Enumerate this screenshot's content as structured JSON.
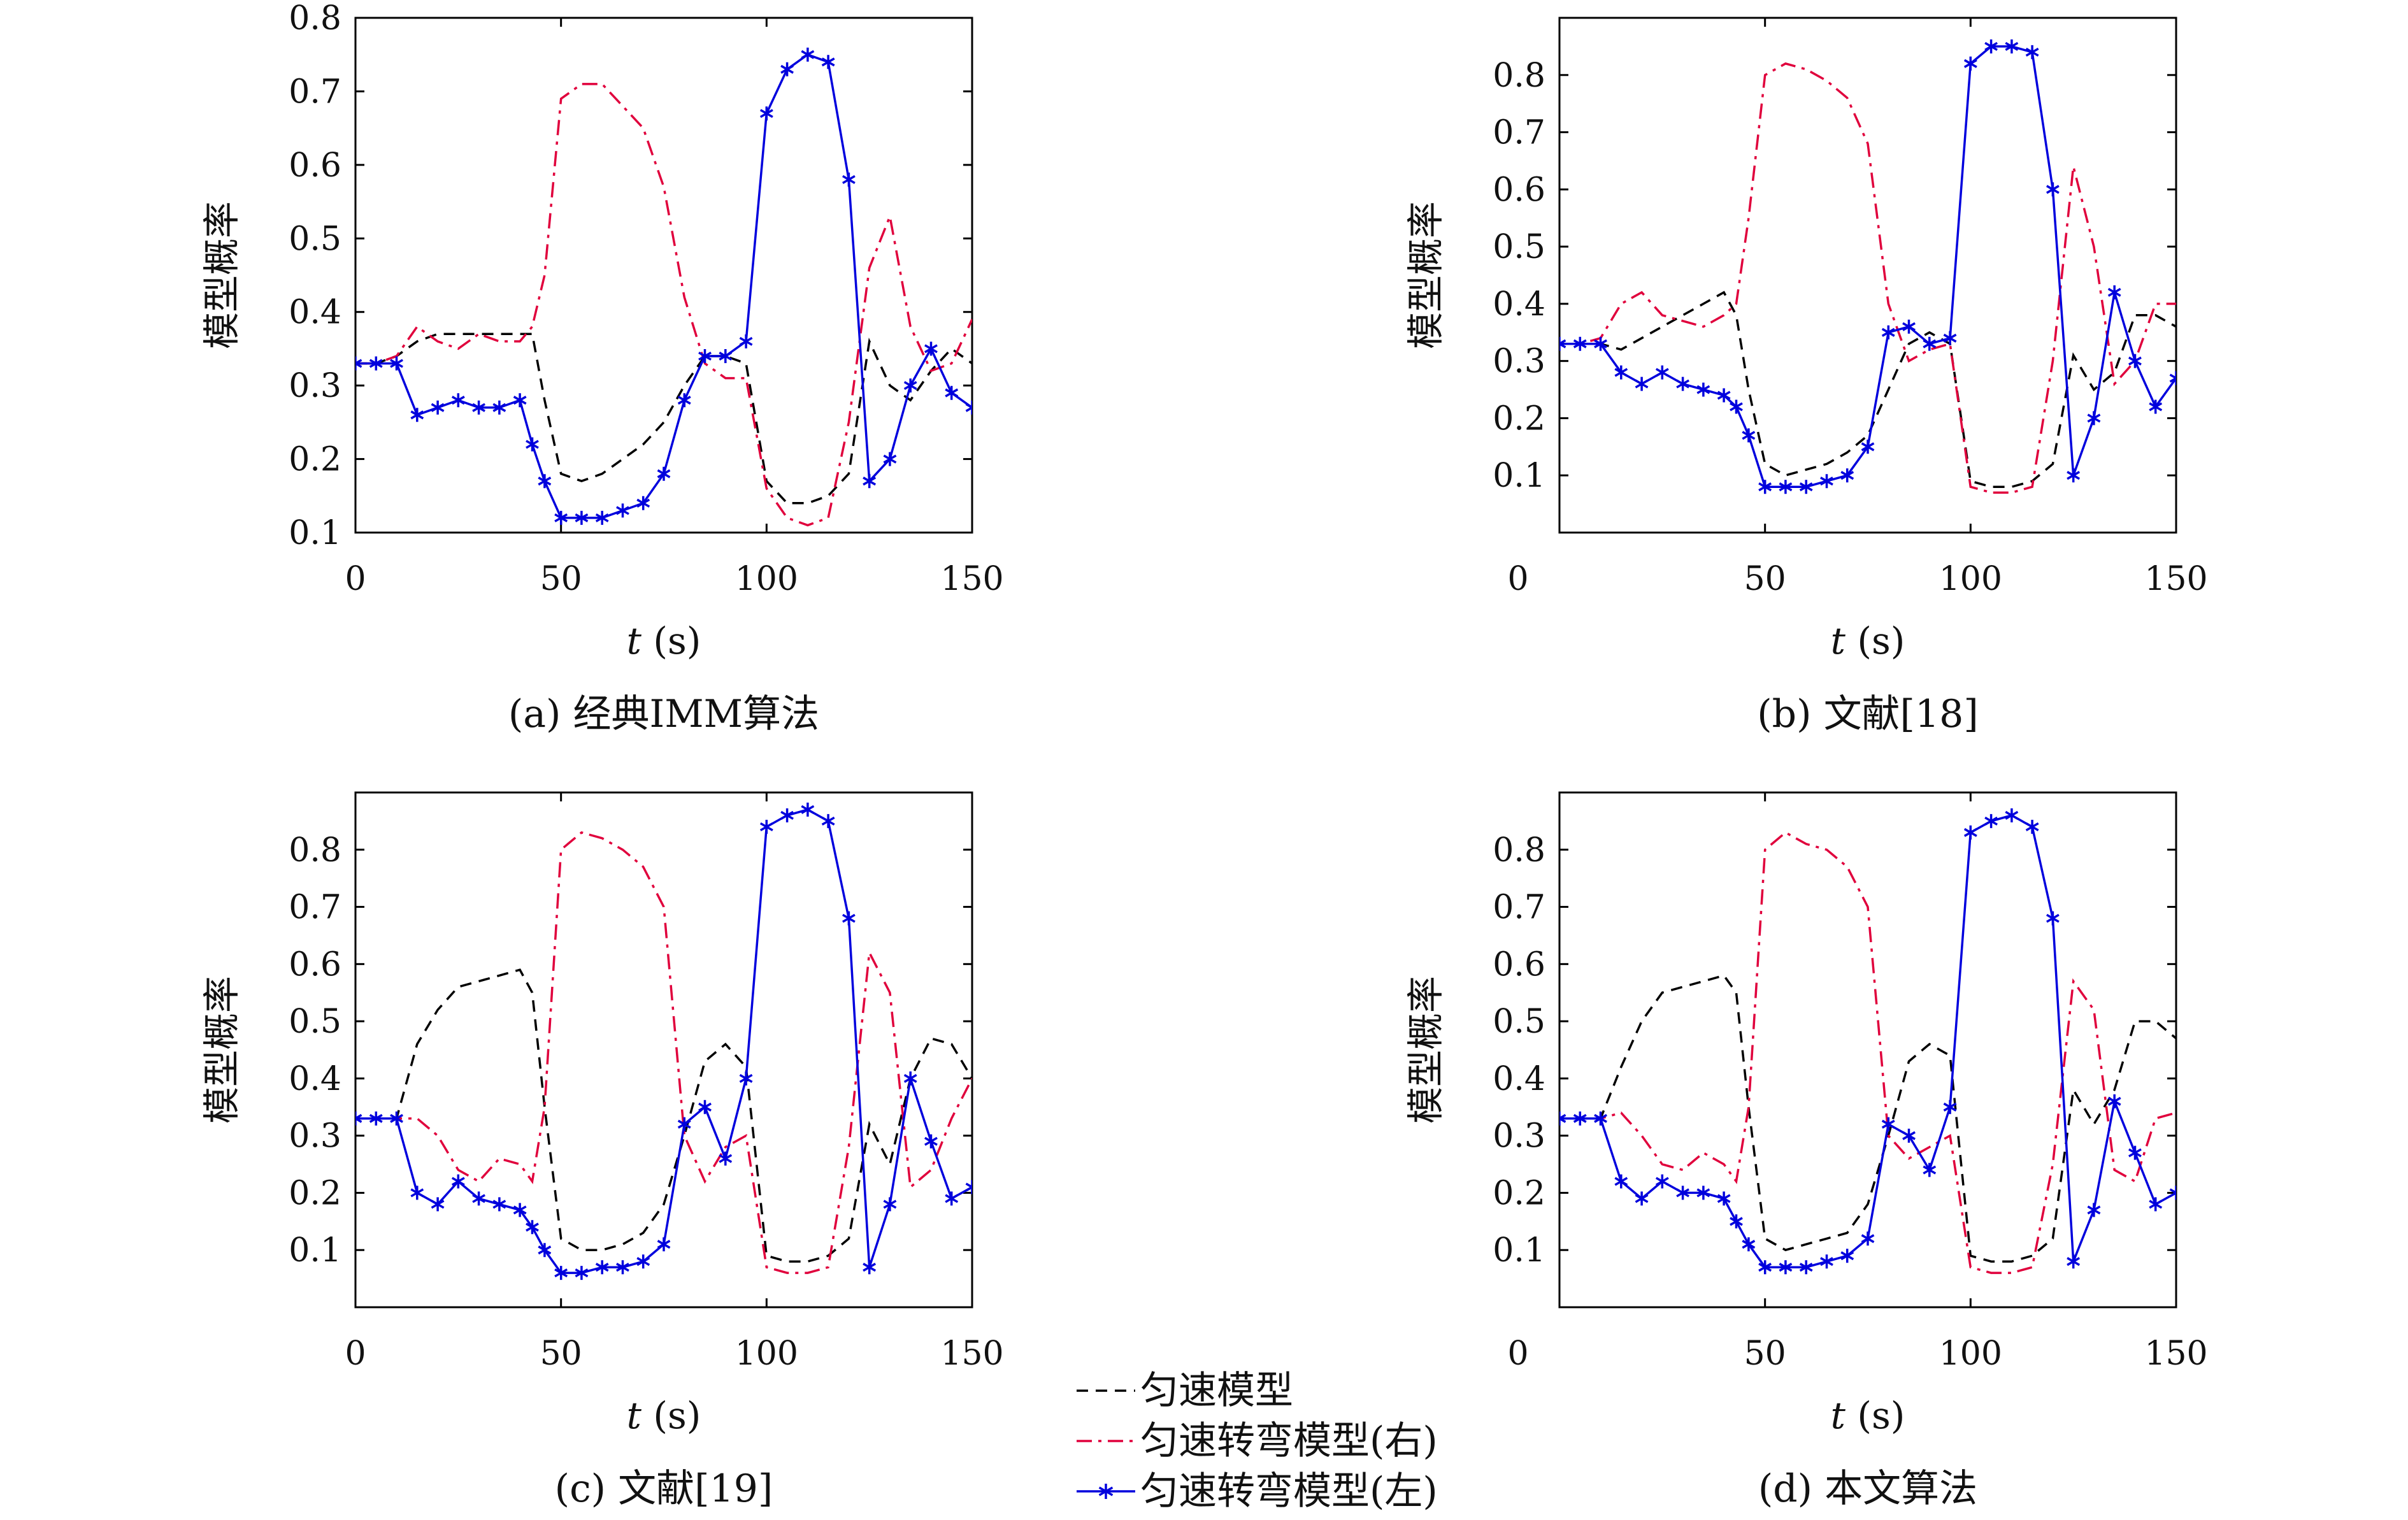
{
  "figure": {
    "legend": [
      {
        "label": "匀速模型",
        "color": "#000000",
        "dash": "dashed",
        "marker": ""
      },
      {
        "label": "匀速转弯模型(右)",
        "color": "#e0003c",
        "dash": "dashdot",
        "marker": ""
      },
      {
        "label": "匀速转弯模型(左)",
        "color": "#0000dd",
        "dash": "solid",
        "marker": "star"
      }
    ]
  },
  "chart_data": [
    {
      "type": "line",
      "caption": "(a) 经典IMM算法",
      "xlabel": "t (s)",
      "ylabel": "模型概率",
      "xlim": [
        0,
        150
      ],
      "ylim": [
        0.1,
        0.8
      ],
      "xticks": [
        0,
        50,
        100,
        150
      ],
      "yticks": [
        0.1,
        0.2,
        0.3,
        0.4,
        0.5,
        0.6,
        0.7,
        0.8
      ],
      "x": [
        0,
        5,
        10,
        15,
        20,
        25,
        30,
        35,
        40,
        43,
        46,
        50,
        55,
        60,
        65,
        70,
        75,
        80,
        85,
        90,
        95,
        100,
        105,
        110,
        115,
        120,
        125,
        130,
        135,
        140,
        145,
        150
      ],
      "series": [
        {
          "name": "匀速模型",
          "color": "#000000",
          "values": [
            0.33,
            0.33,
            0.34,
            0.36,
            0.37,
            0.37,
            0.37,
            0.37,
            0.37,
            0.37,
            0.28,
            0.18,
            0.17,
            0.18,
            0.2,
            0.22,
            0.25,
            0.3,
            0.34,
            0.34,
            0.33,
            0.17,
            0.14,
            0.14,
            0.15,
            0.18,
            0.36,
            0.3,
            0.28,
            0.32,
            0.35,
            0.33
          ]
        },
        {
          "name": "匀速转弯模型(右)",
          "color": "#e0003c",
          "values": [
            0.33,
            0.33,
            0.34,
            0.38,
            0.36,
            0.35,
            0.37,
            0.36,
            0.36,
            0.38,
            0.45,
            0.69,
            0.71,
            0.71,
            0.68,
            0.65,
            0.57,
            0.42,
            0.33,
            0.31,
            0.31,
            0.16,
            0.12,
            0.11,
            0.12,
            0.25,
            0.46,
            0.53,
            0.38,
            0.32,
            0.33,
            0.39
          ]
        },
        {
          "name": "匀速转弯模型(左)",
          "color": "#0000dd",
          "values": [
            0.33,
            0.33,
            0.33,
            0.26,
            0.27,
            0.28,
            0.27,
            0.27,
            0.28,
            0.22,
            0.17,
            0.12,
            0.12,
            0.12,
            0.13,
            0.14,
            0.18,
            0.28,
            0.34,
            0.34,
            0.36,
            0.67,
            0.73,
            0.75,
            0.74,
            0.58,
            0.17,
            0.2,
            0.3,
            0.35,
            0.29,
            0.27
          ]
        }
      ]
    },
    {
      "type": "line",
      "caption": "(b) 文献[18]",
      "xlabel": "t (s)",
      "ylabel": "模型概率",
      "xlim": [
        0,
        150
      ],
      "ylim": [
        0,
        0.9
      ],
      "xticks": [
        0,
        50,
        100,
        150
      ],
      "yticks": [
        0.1,
        0.2,
        0.3,
        0.4,
        0.5,
        0.6,
        0.7,
        0.8
      ],
      "x": [
        0,
        5,
        10,
        15,
        20,
        25,
        30,
        35,
        40,
        43,
        46,
        50,
        55,
        60,
        65,
        70,
        75,
        80,
        85,
        90,
        95,
        100,
        105,
        110,
        115,
        120,
        125,
        130,
        135,
        140,
        145,
        150
      ],
      "series": [
        {
          "name": "匀速模型",
          "color": "#000000",
          "values": [
            0.33,
            0.33,
            0.33,
            0.32,
            0.34,
            0.36,
            0.38,
            0.4,
            0.42,
            0.38,
            0.25,
            0.12,
            0.1,
            0.11,
            0.12,
            0.14,
            0.17,
            0.25,
            0.33,
            0.35,
            0.33,
            0.09,
            0.08,
            0.08,
            0.09,
            0.12,
            0.31,
            0.25,
            0.28,
            0.38,
            0.38,
            0.36
          ]
        },
        {
          "name": "匀速转弯模型(右)",
          "color": "#e0003c",
          "values": [
            0.33,
            0.33,
            0.34,
            0.4,
            0.42,
            0.38,
            0.37,
            0.36,
            0.38,
            0.4,
            0.55,
            0.8,
            0.82,
            0.81,
            0.79,
            0.76,
            0.68,
            0.4,
            0.3,
            0.32,
            0.33,
            0.08,
            0.07,
            0.07,
            0.08,
            0.3,
            0.64,
            0.5,
            0.26,
            0.3,
            0.4,
            0.4
          ]
        },
        {
          "name": "匀速转弯模型(左)",
          "color": "#0000dd",
          "values": [
            0.33,
            0.33,
            0.33,
            0.28,
            0.26,
            0.28,
            0.26,
            0.25,
            0.24,
            0.22,
            0.17,
            0.08,
            0.08,
            0.08,
            0.09,
            0.1,
            0.15,
            0.35,
            0.36,
            0.33,
            0.34,
            0.82,
            0.85,
            0.85,
            0.84,
            0.6,
            0.1,
            0.2,
            0.42,
            0.3,
            0.22,
            0.27
          ]
        }
      ]
    },
    {
      "type": "line",
      "caption": "(c) 文献[19]",
      "xlabel": "t (s)",
      "ylabel": "模型概率",
      "xlim": [
        0,
        150
      ],
      "ylim": [
        0,
        0.9
      ],
      "xticks": [
        0,
        50,
        100,
        150
      ],
      "yticks": [
        0.1,
        0.2,
        0.3,
        0.4,
        0.5,
        0.6,
        0.7,
        0.8
      ],
      "x": [
        0,
        5,
        10,
        15,
        20,
        25,
        30,
        35,
        40,
        43,
        46,
        50,
        55,
        60,
        65,
        70,
        75,
        80,
        85,
        90,
        95,
        100,
        105,
        110,
        115,
        120,
        125,
        130,
        135,
        140,
        145,
        150
      ],
      "series": [
        {
          "name": "匀速模型",
          "color": "#000000",
          "values": [
            0.33,
            0.33,
            0.33,
            0.46,
            0.52,
            0.56,
            0.57,
            0.58,
            0.59,
            0.55,
            0.35,
            0.12,
            0.1,
            0.1,
            0.11,
            0.13,
            0.18,
            0.3,
            0.43,
            0.46,
            0.42,
            0.09,
            0.08,
            0.08,
            0.09,
            0.12,
            0.32,
            0.25,
            0.4,
            0.47,
            0.46,
            0.4
          ]
        },
        {
          "name": "匀速转弯模型(右)",
          "color": "#e0003c",
          "values": [
            0.33,
            0.33,
            0.33,
            0.33,
            0.3,
            0.24,
            0.22,
            0.26,
            0.25,
            0.22,
            0.35,
            0.8,
            0.83,
            0.82,
            0.8,
            0.77,
            0.7,
            0.3,
            0.22,
            0.28,
            0.3,
            0.07,
            0.06,
            0.06,
            0.07,
            0.28,
            0.62,
            0.55,
            0.21,
            0.24,
            0.33,
            0.4
          ]
        },
        {
          "name": "匀速转弯模型(左)",
          "color": "#0000dd",
          "values": [
            0.33,
            0.33,
            0.33,
            0.2,
            0.18,
            0.22,
            0.19,
            0.18,
            0.17,
            0.14,
            0.1,
            0.06,
            0.06,
            0.07,
            0.07,
            0.08,
            0.11,
            0.32,
            0.35,
            0.26,
            0.4,
            0.84,
            0.86,
            0.87,
            0.85,
            0.68,
            0.07,
            0.18,
            0.4,
            0.29,
            0.19,
            0.21
          ]
        }
      ]
    },
    {
      "type": "line",
      "caption": "(d) 本文算法",
      "xlabel": "t (s)",
      "ylabel": "模型概率",
      "xlim": [
        0,
        150
      ],
      "ylim": [
        0,
        0.9
      ],
      "xticks": [
        0,
        50,
        100,
        150
      ],
      "yticks": [
        0.1,
        0.2,
        0.3,
        0.4,
        0.5,
        0.6,
        0.7,
        0.8
      ],
      "x": [
        0,
        5,
        10,
        15,
        20,
        25,
        30,
        35,
        40,
        43,
        46,
        50,
        55,
        60,
        65,
        70,
        75,
        80,
        85,
        90,
        95,
        100,
        105,
        110,
        115,
        120,
        125,
        130,
        135,
        140,
        145,
        150
      ],
      "series": [
        {
          "name": "匀速模型",
          "color": "#000000",
          "values": [
            0.33,
            0.33,
            0.33,
            0.42,
            0.5,
            0.55,
            0.56,
            0.57,
            0.58,
            0.55,
            0.35,
            0.12,
            0.1,
            0.11,
            0.12,
            0.13,
            0.18,
            0.3,
            0.43,
            0.46,
            0.44,
            0.09,
            0.08,
            0.08,
            0.09,
            0.12,
            0.38,
            0.32,
            0.38,
            0.5,
            0.5,
            0.47
          ]
        },
        {
          "name": "匀速转弯模型(右)",
          "color": "#e0003c",
          "values": [
            0.33,
            0.33,
            0.33,
            0.34,
            0.3,
            0.25,
            0.24,
            0.27,
            0.25,
            0.22,
            0.35,
            0.8,
            0.83,
            0.81,
            0.8,
            0.77,
            0.7,
            0.3,
            0.26,
            0.28,
            0.3,
            0.07,
            0.06,
            0.06,
            0.07,
            0.25,
            0.57,
            0.52,
            0.24,
            0.22,
            0.33,
            0.34
          ]
        },
        {
          "name": "匀速转弯模型(左)",
          "color": "#0000dd",
          "values": [
            0.33,
            0.33,
            0.33,
            0.22,
            0.19,
            0.22,
            0.2,
            0.2,
            0.19,
            0.15,
            0.11,
            0.07,
            0.07,
            0.07,
            0.08,
            0.09,
            0.12,
            0.32,
            0.3,
            0.24,
            0.35,
            0.83,
            0.85,
            0.86,
            0.84,
            0.68,
            0.08,
            0.17,
            0.36,
            0.27,
            0.18,
            0.2
          ]
        }
      ]
    }
  ]
}
